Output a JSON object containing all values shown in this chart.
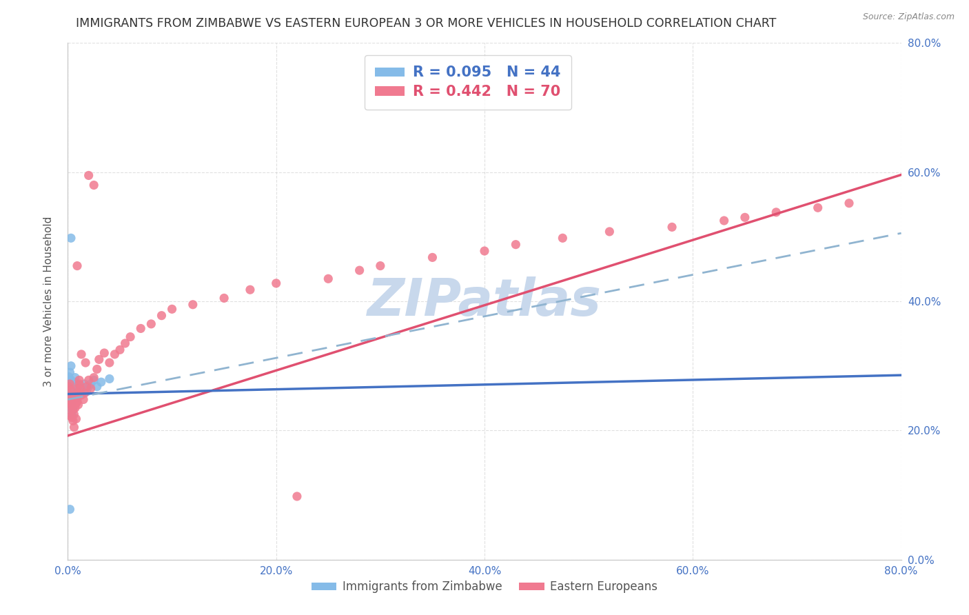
{
  "title": "IMMIGRANTS FROM ZIMBABWE VS EASTERN EUROPEAN 3 OR MORE VEHICLES IN HOUSEHOLD CORRELATION CHART",
  "source": "Source: ZipAtlas.com",
  "xlabel_items": [
    "Immigrants from Zimbabwe",
    "Eastern Europeans"
  ],
  "ylabel": "3 or more Vehicles in Household",
  "xlim": [
    0.0,
    0.8
  ],
  "ylim": [
    0.0,
    0.8
  ],
  "xticks": [
    0.0,
    0.2,
    0.4,
    0.6,
    0.8
  ],
  "yticks": [
    0.0,
    0.2,
    0.4,
    0.6,
    0.8
  ],
  "tick_labels": [
    "0.0%",
    "20.0%",
    "40.0%",
    "60.0%",
    "80.0%"
  ],
  "legend_r1": "R = 0.095   N = 44",
  "legend_r2": "R = 0.442   N = 70",
  "color_zimbabwe": "#85BBE8",
  "color_eastern": "#F07A90",
  "color_trend_zimbabwe": "#4472C4",
  "color_trend_eastern": "#E05070",
  "color_dashed": "#90B4D0",
  "color_title": "#333333",
  "color_axis_labels": "#4472c4",
  "color_legend_r1": "#4472c4",
  "color_legend_r2": "#E05070",
  "color_grid": "#CCCCCC",
  "watermark": "ZIPatlas",
  "watermark_color": "#C8D8EC",
  "trend_zim": [
    0.2565,
    0.0365
  ],
  "trend_ee": [
    0.192,
    0.505
  ],
  "trend_dashed": [
    0.248,
    0.322
  ],
  "zim_x": [
    0.001,
    0.001,
    0.001,
    0.001,
    0.002,
    0.002,
    0.002,
    0.002,
    0.002,
    0.002,
    0.003,
    0.003,
    0.003,
    0.003,
    0.004,
    0.004,
    0.004,
    0.004,
    0.005,
    0.005,
    0.005,
    0.006,
    0.006,
    0.007,
    0.007,
    0.008,
    0.008,
    0.009,
    0.01,
    0.01,
    0.011,
    0.012,
    0.013,
    0.015,
    0.016,
    0.018,
    0.02,
    0.022,
    0.025,
    0.028,
    0.032,
    0.04,
    0.003,
    0.002
  ],
  "zim_y": [
    0.268,
    0.275,
    0.283,
    0.255,
    0.29,
    0.272,
    0.26,
    0.248,
    0.235,
    0.255,
    0.3,
    0.278,
    0.26,
    0.242,
    0.268,
    0.252,
    0.238,
    0.225,
    0.262,
    0.248,
    0.232,
    0.275,
    0.258,
    0.282,
    0.265,
    0.27,
    0.252,
    0.26,
    0.268,
    0.252,
    0.262,
    0.27,
    0.258,
    0.265,
    0.272,
    0.26,
    0.268,
    0.272,
    0.278,
    0.268,
    0.275,
    0.28,
    0.498,
    0.078
  ],
  "ee_x": [
    0.001,
    0.001,
    0.002,
    0.002,
    0.002,
    0.003,
    0.003,
    0.003,
    0.004,
    0.004,
    0.004,
    0.005,
    0.005,
    0.005,
    0.006,
    0.006,
    0.007,
    0.007,
    0.008,
    0.008,
    0.009,
    0.009,
    0.01,
    0.01,
    0.011,
    0.012,
    0.013,
    0.015,
    0.016,
    0.018,
    0.02,
    0.022,
    0.025,
    0.028,
    0.03,
    0.035,
    0.04,
    0.045,
    0.05,
    0.055,
    0.06,
    0.07,
    0.08,
    0.09,
    0.1,
    0.12,
    0.15,
    0.175,
    0.2,
    0.22,
    0.25,
    0.28,
    0.3,
    0.35,
    0.4,
    0.43,
    0.475,
    0.52,
    0.58,
    0.63,
    0.65,
    0.68,
    0.72,
    0.75,
    0.009,
    0.011,
    0.013,
    0.017,
    0.02,
    0.025
  ],
  "ee_y": [
    0.268,
    0.245,
    0.272,
    0.252,
    0.232,
    0.262,
    0.242,
    0.222,
    0.255,
    0.238,
    0.22,
    0.248,
    0.232,
    0.215,
    0.205,
    0.225,
    0.252,
    0.235,
    0.218,
    0.242,
    0.265,
    0.245,
    0.24,
    0.258,
    0.272,
    0.265,
    0.255,
    0.248,
    0.258,
    0.268,
    0.278,
    0.265,
    0.282,
    0.295,
    0.31,
    0.32,
    0.305,
    0.318,
    0.325,
    0.335,
    0.345,
    0.358,
    0.365,
    0.378,
    0.388,
    0.395,
    0.405,
    0.418,
    0.428,
    0.098,
    0.435,
    0.448,
    0.455,
    0.468,
    0.478,
    0.488,
    0.498,
    0.508,
    0.515,
    0.525,
    0.53,
    0.538,
    0.545,
    0.552,
    0.455,
    0.278,
    0.318,
    0.305,
    0.595,
    0.58
  ]
}
